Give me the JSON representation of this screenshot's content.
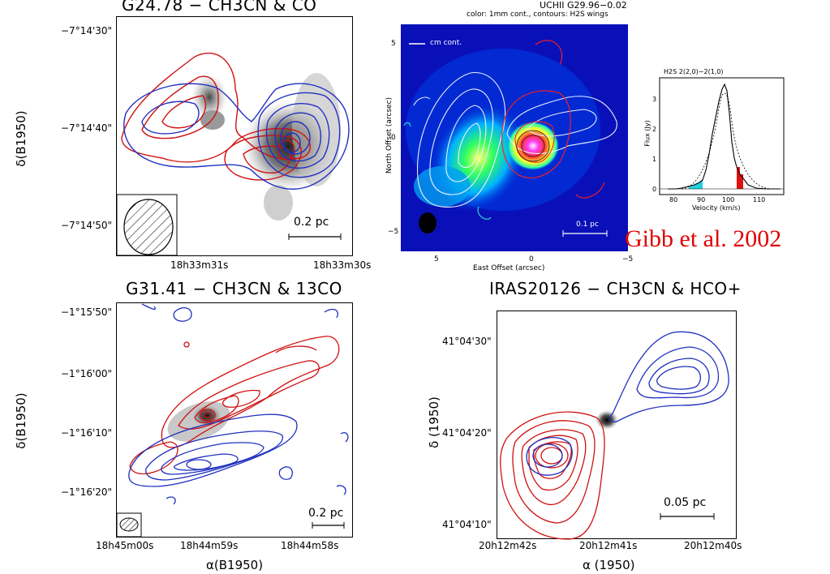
{
  "panels": {
    "p1": {
      "title": "G24.78 − CH3CN & CO",
      "yticks": [
        "−7°14'30\"",
        "−7°14'40\"",
        "−7°14'50\""
      ],
      "xticks": [
        "18h33m31s",
        "18h33m30s"
      ],
      "ylabel": "δ(B1950)",
      "scalebar": "0.2 pc"
    },
    "p2": {
      "title": "UCHII G29.96−0.02",
      "subtitle": "color: 1mm cont., contours: H2S wings",
      "legend": "cm cont.",
      "xlabel": "East Offset (arcsec)",
      "ylabel": "North Offset (arcsec)",
      "xticks": [
        "5",
        "0",
        "−5"
      ],
      "yticks": [
        "5",
        "0",
        "−5"
      ],
      "scalebar": "0.1 pc"
    },
    "p3": {
      "title": "H2S 2(2,0)−2(1,0)",
      "xlabel": "Velocity (km/s)",
      "ylabel": "Flux (Jy)",
      "xticks": [
        "80",
        "90",
        "100",
        "110"
      ],
      "yticks": [
        "0",
        "1",
        "2",
        "3"
      ]
    },
    "p4": {
      "title": "G31.41 − CH3CN & 13CO",
      "yticks": [
        "−1°15'50\"",
        "−1°16'00\"",
        "−1°16'10\"",
        "−1°16'20\""
      ],
      "xticks": [
        "18h45m00s",
        "18h44m59s",
        "18h44m58s"
      ],
      "xlabel": "α(B1950)",
      "ylabel": "δ(B1950)",
      "scalebar": "0.2 pc"
    },
    "p5": {
      "title": "IRAS20126 − CH3CN & HCO+",
      "yticks": [
        "41°04'30\"",
        "41°04'20\"",
        "41°04'10\""
      ],
      "xticks": [
        "20h12m42s",
        "20h12m41s",
        "20h12m40s"
      ],
      "xlabel": "α (1950)",
      "ylabel": "δ (1950)",
      "scalebar": "0.05 pc"
    }
  },
  "credit": "Gibb et al. 2002",
  "colors": {
    "red": "#d01010",
    "blue": "#2030c0",
    "credit": "#e00000"
  }
}
